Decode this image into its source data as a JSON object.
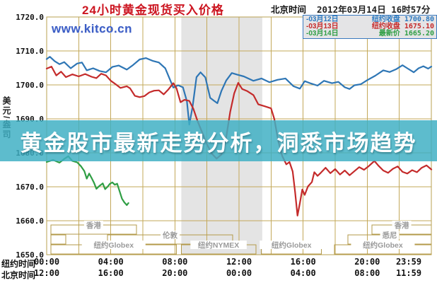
{
  "header": {
    "title": "24小时黄金现货买入价格",
    "timezone_label": "北京时间",
    "datetime": "2012年03月14日 16时57分"
  },
  "watermark": "www.kitco.cn",
  "banner": {
    "text": "黄金股市最新走势分析，洞悉市场趋势"
  },
  "y_axis_unit": "美元/盎司",
  "legend": {
    "items": [
      {
        "dash": "-",
        "date": "03月12日",
        "label": "纽约收盘",
        "value": "1700.80",
        "color": "#2c7ac1"
      },
      {
        "dash": "-",
        "date": "03月13日",
        "label": "纽约收盘",
        "value": "1675.10",
        "color": "#c62a2a"
      },
      {
        "dash": "-",
        "date": "03月14日",
        "label": "最新价",
        "value": "1665.20",
        "color": "#2f9e44"
      }
    ]
  },
  "x_axis": {
    "rows": [
      {
        "label": "纽约时间",
        "ticks": [
          "00:00",
          "04:00",
          "08:00",
          "12:00",
          "16:00",
          "20:00",
          "23:59"
        ]
      },
      {
        "label": "北京时间",
        "ticks": [
          "12:00",
          "16:00",
          "20:00",
          "00:00",
          "04:00",
          "08:00",
          "11:59"
        ]
      }
    ]
  },
  "chart_data": {
    "type": "line",
    "title": "24小时黄金现货买入价格",
    "ylabel": "美元/盎司",
    "ylim": [
      1650,
      1720
    ],
    "y_ticks": [
      1650,
      1660,
      1670,
      1680,
      1690,
      1700,
      1710,
      1720
    ],
    "x_range_hours": [
      0,
      24
    ],
    "x_gridline_step_hours": 2,
    "x_tick_hours": [
      0,
      4,
      8,
      12,
      16,
      20,
      24
    ],
    "grid_color": "#c3a85a",
    "shaded_region": {
      "start_hour": 8.4,
      "end_hour": 13.45,
      "color": "#e4e4e4",
      "note": "纽约NYMEX"
    },
    "series": [
      {
        "name": "03月12日",
        "close_label": "纽约收盘",
        "close_value": 1700.8,
        "color": "#2e76b5",
        "points": [
          [
            0,
            1707.6
          ],
          [
            0.2,
            1708.3
          ],
          [
            0.5,
            1707
          ],
          [
            0.8,
            1706.1
          ],
          [
            1.1,
            1706.7
          ],
          [
            1.5,
            1704.9
          ],
          [
            1.9,
            1706.3
          ],
          [
            2.2,
            1706.6
          ],
          [
            2.5,
            1704.3
          ],
          [
            2.9,
            1704.9
          ],
          [
            3.3,
            1704.1
          ],
          [
            3.7,
            1703.7
          ],
          [
            4.1,
            1705.3
          ],
          [
            4.5,
            1705.7
          ],
          [
            5,
            1704.5
          ],
          [
            5.4,
            1705.9
          ],
          [
            5.8,
            1707.5
          ],
          [
            6.2,
            1707.9
          ],
          [
            6.6,
            1707.1
          ],
          [
            7,
            1706.6
          ],
          [
            7.4,
            1704.9
          ],
          [
            7.7,
            1701.5
          ],
          [
            7.9,
            1699.2
          ],
          [
            8.2,
            1699.9
          ],
          [
            8.5,
            1699.3
          ],
          [
            8.75,
            1695.2
          ],
          [
            8.9,
            1688.3
          ],
          [
            9.1,
            1693.5
          ],
          [
            9.35,
            1702.3
          ],
          [
            9.6,
            1703.7
          ],
          [
            9.9,
            1702.2
          ],
          [
            10.2,
            1696.2
          ],
          [
            10.45,
            1695.3
          ],
          [
            10.65,
            1694.6
          ],
          [
            10.9,
            1698.2
          ],
          [
            11.2,
            1701.3
          ],
          [
            11.55,
            1703.5
          ],
          [
            11.9,
            1703
          ],
          [
            12.3,
            1702.5
          ],
          [
            12.9,
            1701.2
          ],
          [
            13.4,
            1701.9
          ],
          [
            13.9,
            1700.8
          ],
          [
            14.4,
            1701.5
          ],
          [
            14.9,
            1701.9
          ],
          [
            15.4,
            1699.6
          ],
          [
            15.8,
            1698.9
          ],
          [
            16.1,
            1701.1
          ],
          [
            16.5,
            1700.4
          ],
          [
            16.9,
            1699.8
          ],
          [
            17.3,
            1701.2
          ],
          [
            17.8,
            1700.5
          ],
          [
            18.2,
            1700.9
          ],
          [
            18.6,
            1699.3
          ],
          [
            18.9,
            1698.8
          ],
          [
            19.2,
            1699.9
          ],
          [
            19.6,
            1700.2
          ],
          [
            20,
            1701.4
          ],
          [
            20.5,
            1702.7
          ],
          [
            21,
            1704.3
          ],
          [
            21.4,
            1703.8
          ],
          [
            21.8,
            1704.6
          ],
          [
            22.2,
            1705.8
          ],
          [
            22.5,
            1704.9
          ],
          [
            22.9,
            1703.7
          ],
          [
            23.2,
            1704.9
          ],
          [
            23.5,
            1705.5
          ],
          [
            23.8,
            1704.8
          ],
          [
            24,
            1705.4
          ]
        ]
      },
      {
        "name": "03月13日",
        "close_label": "纽约收盘",
        "close_value": 1675.1,
        "color": "#c42b2b",
        "points": [
          [
            0,
            1704.8
          ],
          [
            0.3,
            1705.4
          ],
          [
            0.6,
            1702.8
          ],
          [
            0.9,
            1703.9
          ],
          [
            1.2,
            1702.3
          ],
          [
            1.6,
            1703.1
          ],
          [
            2,
            1702.5
          ],
          [
            2.4,
            1703.2
          ],
          [
            2.8,
            1702.4
          ],
          [
            3.1,
            1702
          ],
          [
            3.4,
            1703.3
          ],
          [
            3.7,
            1702.8
          ],
          [
            4,
            1701.2
          ],
          [
            4.3,
            1700.2
          ],
          [
            4.6,
            1699.1
          ],
          [
            5,
            1699.6
          ],
          [
            5.2,
            1699
          ],
          [
            5.5,
            1696.8
          ],
          [
            5.8,
            1696.4
          ],
          [
            6.1,
            1696.7
          ],
          [
            6.4,
            1697.8
          ],
          [
            6.7,
            1698.3
          ],
          [
            7,
            1698.4
          ],
          [
            7.3,
            1697.2
          ],
          [
            7.6,
            1698.7
          ],
          [
            7.9,
            1700.5
          ],
          [
            8.1,
            1699
          ],
          [
            8.35,
            1694.9
          ],
          [
            8.6,
            1695.6
          ],
          [
            8.9,
            1695.3
          ],
          [
            9.15,
            1693
          ],
          [
            9.4,
            1689.5
          ],
          [
            9.7,
            1686
          ],
          [
            10,
            1682.5
          ],
          [
            10.3,
            1679.8
          ],
          [
            10.6,
            1678.3
          ],
          [
            10.9,
            1679.5
          ],
          [
            11.15,
            1683
          ],
          [
            11.45,
            1692
          ],
          [
            11.7,
            1697.5
          ],
          [
            11.95,
            1700.6
          ],
          [
            12.2,
            1698.8
          ],
          [
            12.5,
            1698.2
          ],
          [
            12.9,
            1697
          ],
          [
            13.2,
            1694.3
          ],
          [
            13.6,
            1693.7
          ],
          [
            14,
            1693.1
          ],
          [
            14.2,
            1690
          ],
          [
            14.45,
            1683.5
          ],
          [
            14.7,
            1679
          ],
          [
            14.95,
            1676.6
          ],
          [
            15.15,
            1677.3
          ],
          [
            15.35,
            1674.5
          ],
          [
            15.5,
            1668.5
          ],
          [
            15.65,
            1661.5
          ],
          [
            15.8,
            1665.2
          ],
          [
            15.95,
            1669.2
          ],
          [
            16.1,
            1667.6
          ],
          [
            16.3,
            1670.1
          ],
          [
            16.55,
            1671.4
          ],
          [
            16.7,
            1674.3
          ],
          [
            16.9,
            1673.2
          ],
          [
            17.1,
            1674.1
          ],
          [
            17.4,
            1675.6
          ],
          [
            17.7,
            1674
          ],
          [
            18,
            1675.2
          ],
          [
            18.3,
            1673.6
          ],
          [
            18.6,
            1674.8
          ],
          [
            18.9,
            1673.4
          ],
          [
            19.2,
            1674.6
          ],
          [
            19.5,
            1675.8
          ],
          [
            19.8,
            1675
          ],
          [
            20.1,
            1676.1
          ],
          [
            20.45,
            1677.6
          ],
          [
            20.7,
            1676.2
          ],
          [
            21,
            1674.8
          ],
          [
            21.3,
            1674.1
          ],
          [
            21.6,
            1675.3
          ],
          [
            21.9,
            1676
          ],
          [
            22.2,
            1674.4
          ],
          [
            22.5,
            1673.9
          ],
          [
            22.8,
            1674.9
          ],
          [
            23.1,
            1674.3
          ],
          [
            23.4,
            1675.6
          ],
          [
            23.7,
            1676.3
          ],
          [
            24,
            1675.1
          ]
        ]
      },
      {
        "name": "03月14日",
        "close_label": "最新价",
        "close_value": 1665.2,
        "color": "#2f9e44",
        "points": [
          [
            0,
            1677.3
          ],
          [
            0.4,
            1677.9
          ],
          [
            0.8,
            1677.1
          ],
          [
            1.1,
            1678.2
          ],
          [
            1.35,
            1679
          ],
          [
            1.6,
            1677.6
          ],
          [
            1.9,
            1677.2
          ],
          [
            2.15,
            1676
          ],
          [
            2.35,
            1674.6
          ],
          [
            2.5,
            1672.4
          ],
          [
            2.65,
            1673.9
          ],
          [
            2.8,
            1672.6
          ],
          [
            2.95,
            1671.2
          ],
          [
            3.1,
            1669.4
          ],
          [
            3.3,
            1670.3
          ],
          [
            3.5,
            1671
          ],
          [
            3.65,
            1669.3
          ],
          [
            3.8,
            1670
          ],
          [
            3.95,
            1670.9
          ],
          [
            4.1,
            1671.3
          ],
          [
            4.25,
            1670.6
          ],
          [
            4.4,
            1670.9
          ],
          [
            4.55,
            1668.7
          ],
          [
            4.7,
            1666.5
          ],
          [
            4.85,
            1665.4
          ],
          [
            5,
            1664.6
          ],
          [
            5.1,
            1665.2
          ]
        ]
      }
    ],
    "sessions": {
      "rows": [
        {
          "bars": [
            {
              "label": "香港",
              "start": 0.26,
              "end": 5.6
            },
            {
              "label": "香港",
              "start": 20.3,
              "end": 24
            }
          ]
        },
        {
          "bars": [
            {
              "label": "",
              "start": 0.26,
              "end": 1.2
            },
            {
              "label": "伦敦",
              "start": 3.8,
              "end": 11.6
            },
            {
              "label": "悉尼",
              "start": 18.8,
              "end": 24
            }
          ]
        },
        {
          "bars": [
            {
              "label": "纽约Globex",
              "start": 0.26,
              "end": 8.1
            },
            {
              "label": "纽约NYMEX",
              "start": 8.4,
              "end": 13.05,
              "filled": true
            },
            {
              "label": "纽约Globex",
              "start": 13.4,
              "end": 17.15
            },
            {
              "label": "纽约Globex",
              "start": 17.95,
              "end": 24
            }
          ]
        }
      ]
    }
  }
}
